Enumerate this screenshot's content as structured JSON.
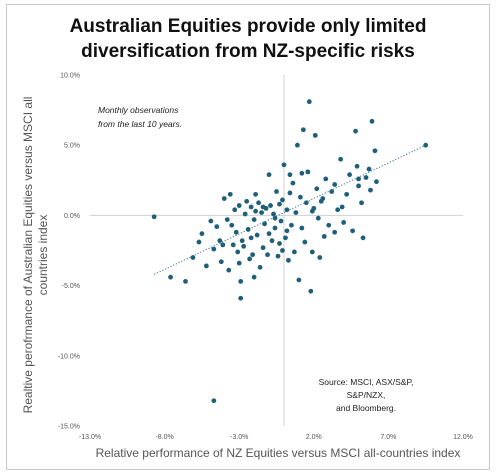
{
  "chart_data": {
    "type": "scatter",
    "title_lines": [
      "Australian Equities provide only limited",
      "diversification from NZ-specific risks"
    ],
    "xlabel": "Relative performance of NZ Equities versus MSCI all-countries index",
    "ylabel_lines": [
      "Realtive perofrmance of Australian Equities versus MSCI all",
      "countries index"
    ],
    "annotation_lines": [
      "Monthly observations",
      "from the last 10 years."
    ],
    "source_lines": [
      "Source: MSCI, ASX/S&P, S&P/NZX,",
      "and Bloomberg."
    ],
    "xlim": [
      -13,
      12
    ],
    "ylim": [
      -15,
      10
    ],
    "x_ticks": [
      -13,
      -8,
      -3,
      2,
      7,
      12
    ],
    "x_tick_labels": [
      "-13.0%",
      "-8.0%",
      "-3.0%",
      "2.0%",
      "7.0%",
      "12.0%"
    ],
    "y_ticks": [
      10,
      5,
      0,
      -5,
      -10,
      -15
    ],
    "y_tick_labels": [
      "10.0%",
      "5.0%",
      "0.0%",
      "-5.0%",
      "-10.0%",
      "-15.0%"
    ],
    "grid": false,
    "trendline": {
      "style": "dotted",
      "points": [
        [
          -8.7,
          -4.2
        ],
        [
          9.5,
          5.0
        ]
      ]
    },
    "colors": {
      "points": "#1f5f7a",
      "trend": "#3a6f95",
      "zero_axis": "#d0d0d0"
    },
    "points": [
      [
        -8.7,
        -0.1
      ],
      [
        -4.7,
        -13.2
      ],
      [
        -7.6,
        -4.4
      ],
      [
        -6.6,
        -4.7
      ],
      [
        -6.1,
        -3.0
      ],
      [
        -5.7,
        -1.9
      ],
      [
        -5.5,
        -1.3
      ],
      [
        -5.2,
        -3.6
      ],
      [
        -4.9,
        -0.4
      ],
      [
        -4.7,
        -2.4
      ],
      [
        -4.5,
        -0.8
      ],
      [
        -4.3,
        -1.8
      ],
      [
        -4.1,
        -2.1
      ],
      [
        -4.0,
        1.2
      ],
      [
        -3.8,
        -0.3
      ],
      [
        -3.7,
        -3.9
      ],
      [
        -3.6,
        1.5
      ],
      [
        -3.5,
        -0.7
      ],
      [
        -3.4,
        -2.1
      ],
      [
        -3.3,
        0.4
      ],
      [
        -3.2,
        -1.2
      ],
      [
        -3.1,
        -2.6
      ],
      [
        -3.0,
        0.7
      ],
      [
        -3.0,
        -3.4
      ],
      [
        -2.9,
        -4.7
      ],
      [
        -2.9,
        -5.9
      ],
      [
        -2.8,
        -1.8
      ],
      [
        -2.7,
        -2.2
      ],
      [
        -2.6,
        0.1
      ],
      [
        -2.5,
        1.0
      ],
      [
        -2.4,
        -1.0
      ],
      [
        -2.3,
        -3.1
      ],
      [
        -2.2,
        0.6
      ],
      [
        -2.1,
        -2.8
      ],
      [
        -2.0,
        -4.4
      ],
      [
        -2.0,
        -0.3
      ],
      [
        -1.9,
        1.5
      ],
      [
        -1.8,
        -1.4
      ],
      [
        -1.7,
        0.9
      ],
      [
        -1.6,
        -3.7
      ],
      [
        -1.5,
        0.2
      ],
      [
        -1.4,
        -2.3
      ],
      [
        -1.3,
        -0.6
      ],
      [
        -1.2,
        0.5
      ],
      [
        -1.1,
        -2.8
      ],
      [
        -1.0,
        2.9
      ],
      [
        -1.0,
        -1.3
      ],
      [
        -0.9,
        0.7
      ],
      [
        -0.8,
        -1.8
      ],
      [
        -0.7,
        0.1
      ],
      [
        -0.6,
        -0.9
      ],
      [
        -0.5,
        1.7
      ],
      [
        -0.4,
        -2.9
      ],
      [
        -0.3,
        0.8
      ],
      [
        -0.2,
        -0.4
      ],
      [
        -0.1,
        1.1
      ],
      [
        -0.1,
        -2.5
      ],
      [
        0.0,
        3.6
      ],
      [
        0.1,
        -1.6
      ],
      [
        0.2,
        0.4
      ],
      [
        0.3,
        -3.2
      ],
      [
        0.4,
        1.6
      ],
      [
        0.5,
        -0.7
      ],
      [
        0.6,
        2.3
      ],
      [
        0.7,
        -2.6
      ],
      [
        0.8,
        0.2
      ],
      [
        0.9,
        5.0
      ],
      [
        1.0,
        -4.6
      ],
      [
        1.1,
        1.3
      ],
      [
        1.2,
        -0.9
      ],
      [
        1.3,
        6.1
      ],
      [
        1.4,
        -1.9
      ],
      [
        1.5,
        0.9
      ],
      [
        1.6,
        3.1
      ],
      [
        1.7,
        8.1
      ],
      [
        1.8,
        -5.4
      ],
      [
        1.9,
        -2.6
      ],
      [
        2.0,
        0.5
      ],
      [
        2.1,
        5.7
      ],
      [
        2.2,
        1.9
      ],
      [
        2.3,
        -0.2
      ],
      [
        2.4,
        -3.0
      ],
      [
        2.6,
        1.2
      ],
      [
        2.8,
        2.6
      ],
      [
        3.0,
        -0.7
      ],
      [
        3.2,
        1.7
      ],
      [
        3.4,
        -1.2
      ],
      [
        3.6,
        0.4
      ],
      [
        3.8,
        4.0
      ],
      [
        4.0,
        -0.5
      ],
      [
        4.2,
        1.5
      ],
      [
        4.4,
        2.9
      ],
      [
        4.6,
        -1.1
      ],
      [
        4.8,
        6.0
      ],
      [
        5.0,
        2.1
      ],
      [
        5.2,
        0.9
      ],
      [
        5.3,
        -1.6
      ],
      [
        5.5,
        2.7
      ],
      [
        5.7,
        3.3
      ],
      [
        5.9,
        6.7
      ],
      [
        6.1,
        4.6
      ],
      [
        6.2,
        2.4
      ],
      [
        4.9,
        3.5
      ],
      [
        3.4,
        2.2
      ],
      [
        2.5,
        1.0
      ],
      [
        5.0,
        2.6
      ],
      [
        -0.6,
        -0.2
      ],
      [
        9.5,
        5.0
      ],
      [
        1.2,
        3.0
      ],
      [
        -1.9,
        0.3
      ],
      [
        0.2,
        -1.1
      ],
      [
        -2.2,
        -1.6
      ],
      [
        3.9,
        0.6
      ],
      [
        5.8,
        1.8
      ],
      [
        -0.3,
        -2.0
      ],
      [
        1.9,
        0.3
      ],
      [
        -4.2,
        -3.3
      ],
      [
        0.4,
        2.9
      ],
      [
        -1.4,
        0.6
      ],
      [
        2.7,
        -1.5
      ]
    ]
  }
}
